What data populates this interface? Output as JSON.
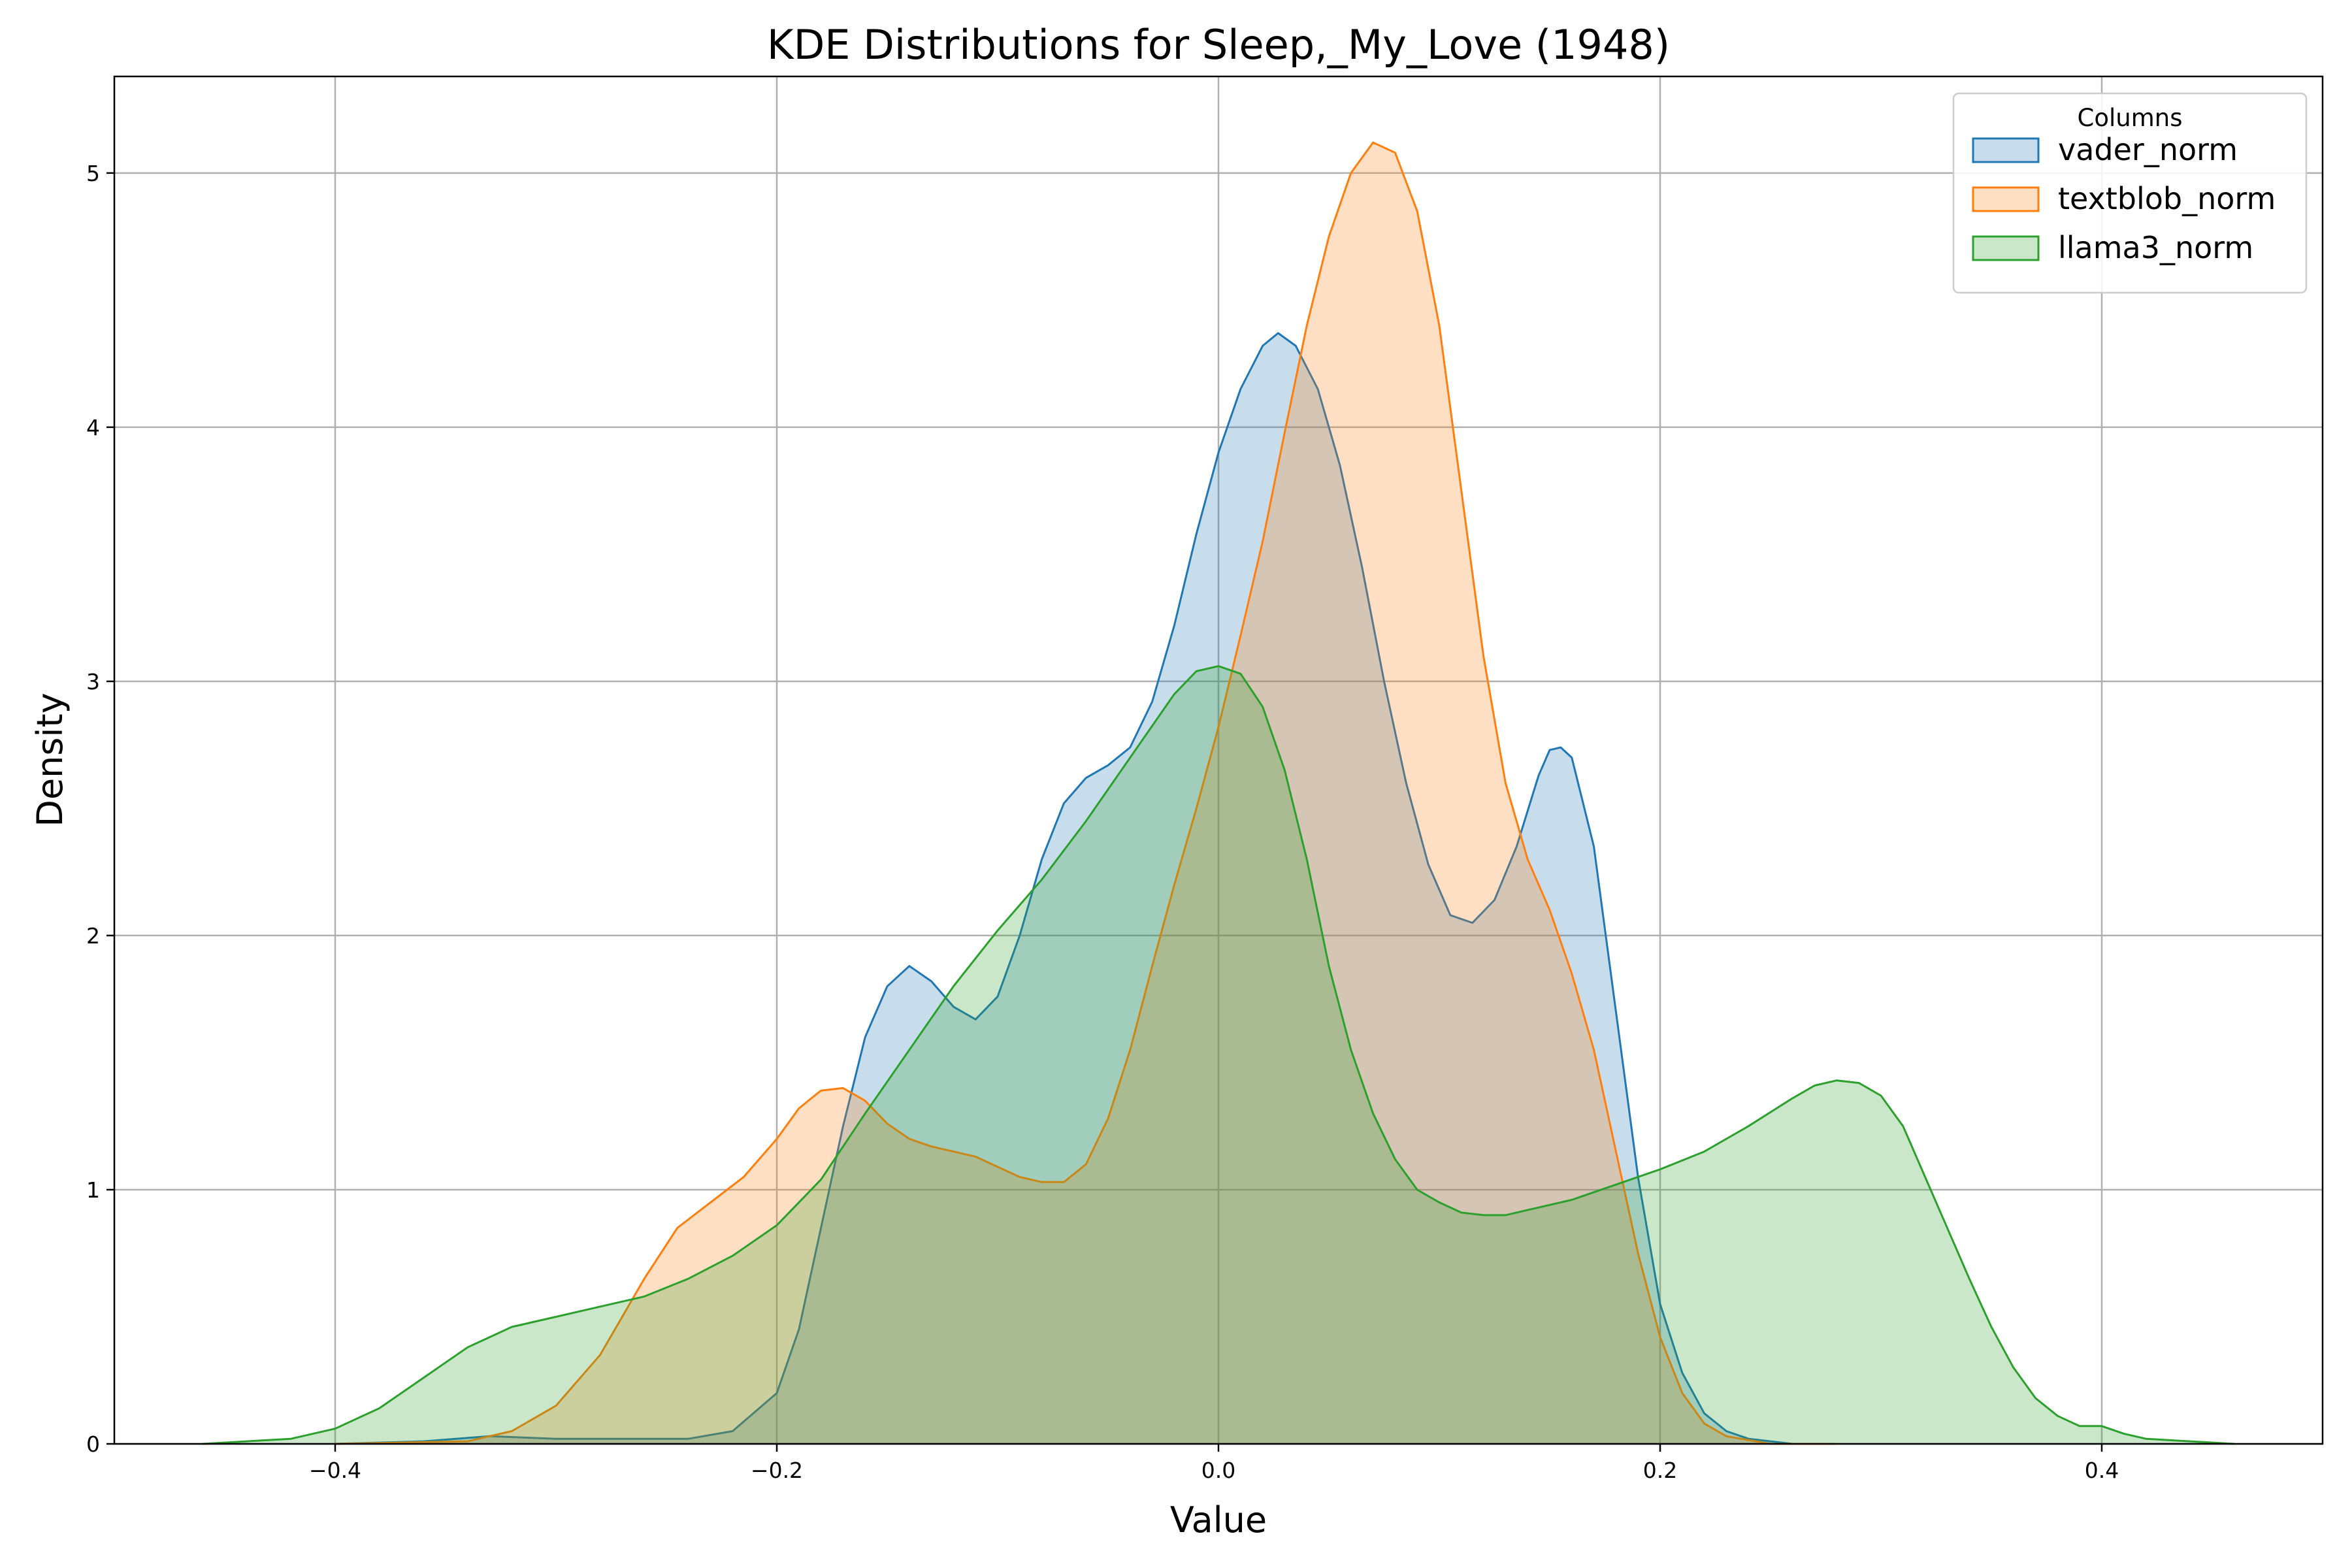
{
  "chart_data": {
    "type": "area",
    "title": "KDE Distributions for Sleep,_My_Love (1948)",
    "xlabel": "Value",
    "ylabel": "Density",
    "xlim": [
      -0.5,
      0.5
    ],
    "ylim": [
      0,
      5.38
    ],
    "grid": true,
    "legend": {
      "title": "Columns",
      "position": "top-right"
    },
    "xticks": [
      -0.4,
      -0.2,
      0.0,
      0.2,
      0.4
    ],
    "xtick_labels": [
      "−0.4",
      "−0.2",
      "0.0",
      "0.2",
      "0.4"
    ],
    "yticks": [
      0,
      1,
      2,
      3,
      4,
      5
    ],
    "ytick_labels": [
      "0",
      "1",
      "2",
      "3",
      "4",
      "5"
    ],
    "series": [
      {
        "name": "vader_norm",
        "color": "#1f77b4",
        "points": [
          [
            -0.4,
            0
          ],
          [
            -0.36,
            0.01
          ],
          [
            -0.33,
            0.03
          ],
          [
            -0.3,
            0.02
          ],
          [
            -0.26,
            0.02
          ],
          [
            -0.24,
            0.02
          ],
          [
            -0.22,
            0.05
          ],
          [
            -0.2,
            0.2
          ],
          [
            -0.19,
            0.45
          ],
          [
            -0.18,
            0.85
          ],
          [
            -0.17,
            1.25
          ],
          [
            -0.16,
            1.6
          ],
          [
            -0.15,
            1.8
          ],
          [
            -0.14,
            1.88
          ],
          [
            -0.13,
            1.82
          ],
          [
            -0.12,
            1.72
          ],
          [
            -0.11,
            1.67
          ],
          [
            -0.1,
            1.76
          ],
          [
            -0.09,
            2.0
          ],
          [
            -0.08,
            2.3
          ],
          [
            -0.07,
            2.52
          ],
          [
            -0.06,
            2.62
          ],
          [
            -0.05,
            2.67
          ],
          [
            -0.04,
            2.74
          ],
          [
            -0.03,
            2.92
          ],
          [
            -0.02,
            3.22
          ],
          [
            -0.01,
            3.58
          ],
          [
            0.0,
            3.9
          ],
          [
            0.01,
            4.15
          ],
          [
            0.02,
            4.32
          ],
          [
            0.027,
            4.37
          ],
          [
            0.035,
            4.32
          ],
          [
            0.045,
            4.15
          ],
          [
            0.055,
            3.85
          ],
          [
            0.065,
            3.45
          ],
          [
            0.075,
            3.0
          ],
          [
            0.085,
            2.6
          ],
          [
            0.095,
            2.28
          ],
          [
            0.105,
            2.08
          ],
          [
            0.115,
            2.05
          ],
          [
            0.125,
            2.14
          ],
          [
            0.135,
            2.35
          ],
          [
            0.145,
            2.63
          ],
          [
            0.15,
            2.73
          ],
          [
            0.155,
            2.74
          ],
          [
            0.16,
            2.7
          ],
          [
            0.17,
            2.35
          ],
          [
            0.18,
            1.7
          ],
          [
            0.19,
            1.05
          ],
          [
            0.2,
            0.55
          ],
          [
            0.21,
            0.28
          ],
          [
            0.22,
            0.12
          ],
          [
            0.23,
            0.05
          ],
          [
            0.24,
            0.02
          ],
          [
            0.26,
            0.0
          ],
          [
            0.28,
            0
          ]
        ]
      },
      {
        "name": "textblob_norm",
        "color": "#ff7f0e",
        "points": [
          [
            -0.4,
            0
          ],
          [
            -0.34,
            0.01
          ],
          [
            -0.32,
            0.05
          ],
          [
            -0.3,
            0.15
          ],
          [
            -0.28,
            0.35
          ],
          [
            -0.26,
            0.65
          ],
          [
            -0.245,
            0.85
          ],
          [
            -0.23,
            0.95
          ],
          [
            -0.215,
            1.05
          ],
          [
            -0.2,
            1.2
          ],
          [
            -0.19,
            1.32
          ],
          [
            -0.18,
            1.39
          ],
          [
            -0.17,
            1.4
          ],
          [
            -0.16,
            1.35
          ],
          [
            -0.15,
            1.26
          ],
          [
            -0.14,
            1.2
          ],
          [
            -0.13,
            1.17
          ],
          [
            -0.12,
            1.15
          ],
          [
            -0.11,
            1.13
          ],
          [
            -0.1,
            1.09
          ],
          [
            -0.09,
            1.05
          ],
          [
            -0.08,
            1.03
          ],
          [
            -0.07,
            1.03
          ],
          [
            -0.06,
            1.1
          ],
          [
            -0.05,
            1.28
          ],
          [
            -0.04,
            1.55
          ],
          [
            -0.03,
            1.88
          ],
          [
            -0.02,
            2.2
          ],
          [
            -0.01,
            2.5
          ],
          [
            0.0,
            2.82
          ],
          [
            0.01,
            3.18
          ],
          [
            0.02,
            3.55
          ],
          [
            0.03,
            3.98
          ],
          [
            0.04,
            4.4
          ],
          [
            0.05,
            4.75
          ],
          [
            0.06,
            5.0
          ],
          [
            0.07,
            5.12
          ],
          [
            0.08,
            5.08
          ],
          [
            0.09,
            4.85
          ],
          [
            0.1,
            4.4
          ],
          [
            0.11,
            3.75
          ],
          [
            0.12,
            3.1
          ],
          [
            0.13,
            2.6
          ],
          [
            0.14,
            2.3
          ],
          [
            0.15,
            2.1
          ],
          [
            0.16,
            1.85
          ],
          [
            0.17,
            1.55
          ],
          [
            0.18,
            1.15
          ],
          [
            0.19,
            0.75
          ],
          [
            0.2,
            0.42
          ],
          [
            0.21,
            0.2
          ],
          [
            0.22,
            0.08
          ],
          [
            0.23,
            0.03
          ],
          [
            0.25,
            0.0
          ],
          [
            0.28,
            0
          ]
        ]
      },
      {
        "name": "llama3_norm",
        "color": "#2ca02c",
        "points": [
          [
            -0.46,
            0
          ],
          [
            -0.44,
            0.01
          ],
          [
            -0.42,
            0.02
          ],
          [
            -0.4,
            0.06
          ],
          [
            -0.38,
            0.14
          ],
          [
            -0.36,
            0.26
          ],
          [
            -0.34,
            0.38
          ],
          [
            -0.32,
            0.46
          ],
          [
            -0.3,
            0.5
          ],
          [
            -0.28,
            0.54
          ],
          [
            -0.26,
            0.58
          ],
          [
            -0.24,
            0.65
          ],
          [
            -0.22,
            0.74
          ],
          [
            -0.2,
            0.86
          ],
          [
            -0.18,
            1.04
          ],
          [
            -0.16,
            1.3
          ],
          [
            -0.14,
            1.55
          ],
          [
            -0.12,
            1.8
          ],
          [
            -0.1,
            2.02
          ],
          [
            -0.08,
            2.22
          ],
          [
            -0.06,
            2.45
          ],
          [
            -0.04,
            2.7
          ],
          [
            -0.02,
            2.95
          ],
          [
            -0.01,
            3.04
          ],
          [
            0.0,
            3.06
          ],
          [
            0.01,
            3.03
          ],
          [
            0.02,
            2.9
          ],
          [
            0.03,
            2.65
          ],
          [
            0.04,
            2.3
          ],
          [
            0.05,
            1.88
          ],
          [
            0.06,
            1.55
          ],
          [
            0.07,
            1.3
          ],
          [
            0.08,
            1.12
          ],
          [
            0.09,
            1.0
          ],
          [
            0.1,
            0.95
          ],
          [
            0.11,
            0.91
          ],
          [
            0.12,
            0.9
          ],
          [
            0.13,
            0.9
          ],
          [
            0.14,
            0.92
          ],
          [
            0.16,
            0.96
          ],
          [
            0.18,
            1.02
          ],
          [
            0.2,
            1.08
          ],
          [
            0.22,
            1.15
          ],
          [
            0.24,
            1.25
          ],
          [
            0.26,
            1.36
          ],
          [
            0.27,
            1.41
          ],
          [
            0.28,
            1.43
          ],
          [
            0.29,
            1.42
          ],
          [
            0.3,
            1.37
          ],
          [
            0.31,
            1.25
          ],
          [
            0.32,
            1.05
          ],
          [
            0.33,
            0.85
          ],
          [
            0.34,
            0.65
          ],
          [
            0.35,
            0.46
          ],
          [
            0.36,
            0.3
          ],
          [
            0.37,
            0.18
          ],
          [
            0.38,
            0.11
          ],
          [
            0.39,
            0.07
          ],
          [
            0.4,
            0.07
          ],
          [
            0.41,
            0.04
          ],
          [
            0.42,
            0.02
          ],
          [
            0.44,
            0.01
          ],
          [
            0.46,
            0
          ]
        ]
      }
    ]
  }
}
